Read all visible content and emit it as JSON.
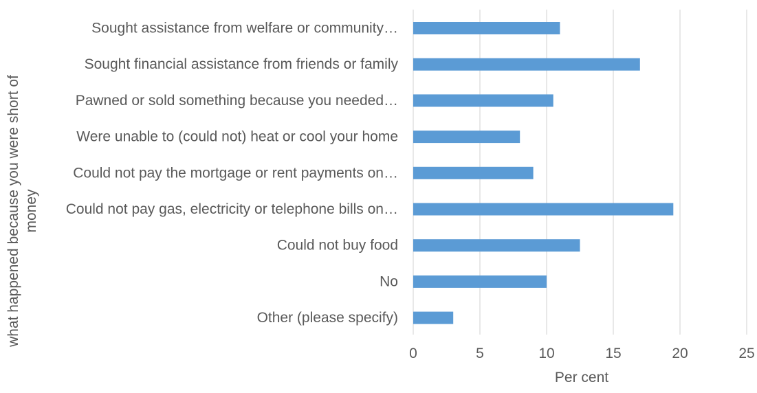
{
  "chart_data": {
    "type": "bar",
    "orientation": "horizontal",
    "categories": [
      "Sought assistance from welfare or community…",
      "Sought financial assistance from friends or family",
      "Pawned or sold something because you needed…",
      "Were unable to (could not) heat or cool your home",
      "Could not pay the mortgage or rent payments on…",
      "Could not pay gas, electricity or telephone bills on…",
      "Could not buy food",
      "No",
      "Other (please specify)"
    ],
    "values": [
      11,
      17,
      10.5,
      8,
      9,
      19.5,
      12.5,
      10,
      3
    ],
    "xlabel": "Per cent",
    "ylabel": "what happened because you were short of money",
    "ylabel_lines": [
      "what happened because you were short of",
      "money"
    ],
    "xlim": [
      0,
      25
    ],
    "xticks": [
      "0",
      "5",
      "10",
      "15",
      "20",
      "25"
    ],
    "grid": true,
    "bar_color": "#5b9bd5",
    "grid_color": "#d9d9d9",
    "text_color": "#595959"
  }
}
